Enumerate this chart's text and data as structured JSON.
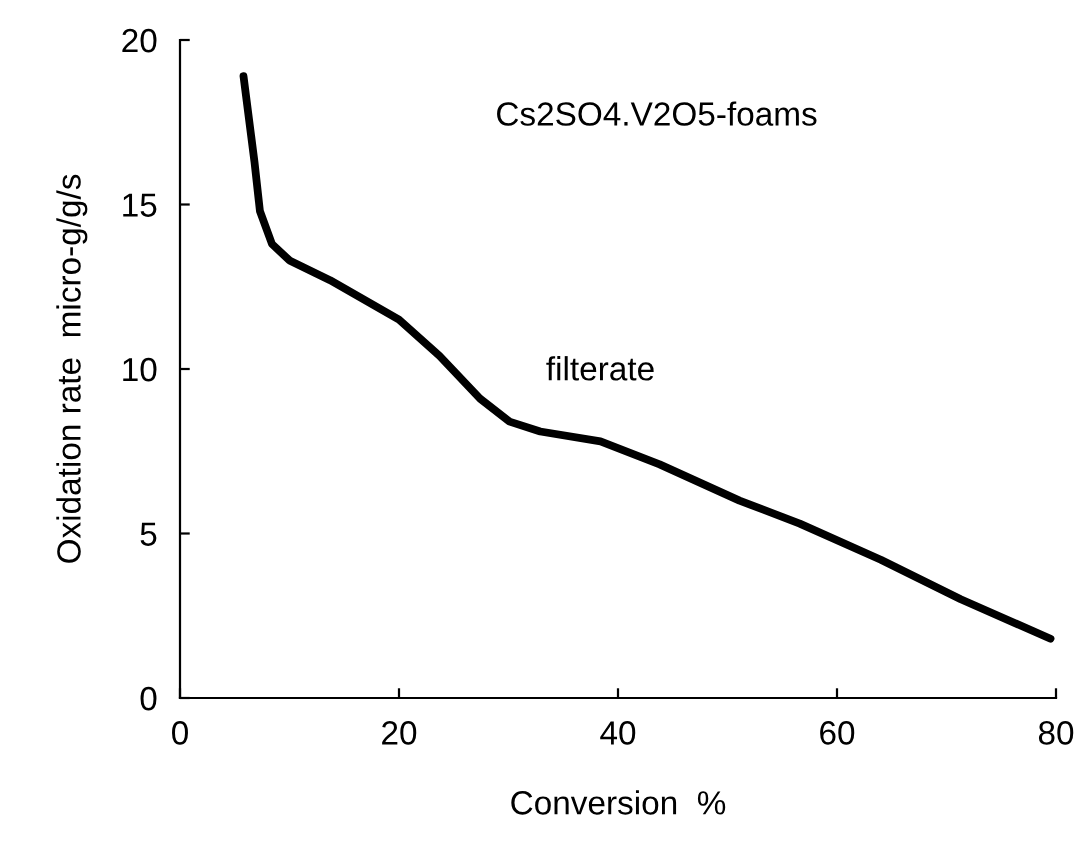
{
  "chart_data": {
    "type": "line",
    "title": "Cs2SO4.V2O5-foams",
    "xlabel": "Conversion  %",
    "ylabel": "Oxidation rate  micro-g/g/s",
    "series": [
      {
        "name": "filterate",
        "color": "#000000",
        "x": [
          5.8,
          6.8,
          7.3,
          8.4,
          10,
          13.7,
          20,
          23.7,
          27.4,
          30.1,
          32.9,
          38.4,
          43.8,
          51.1,
          56.6,
          64,
          71.3,
          79.5
        ],
        "values": [
          18.9,
          16.3,
          14.8,
          13.8,
          13.3,
          12.7,
          11.5,
          10.4,
          9.1,
          8.4,
          8.1,
          7.8,
          7.1,
          6.0,
          5.3,
          4.2,
          3.0,
          1.8
        ]
      }
    ],
    "xlim": [
      0,
      80
    ],
    "ylim": [
      0,
      20
    ],
    "xticks": [
      0,
      20,
      40,
      60,
      80
    ],
    "yticks": [
      0,
      5,
      10,
      15,
      20
    ],
    "grid": false,
    "legend": false,
    "marker": "none",
    "line_style": "solid"
  }
}
